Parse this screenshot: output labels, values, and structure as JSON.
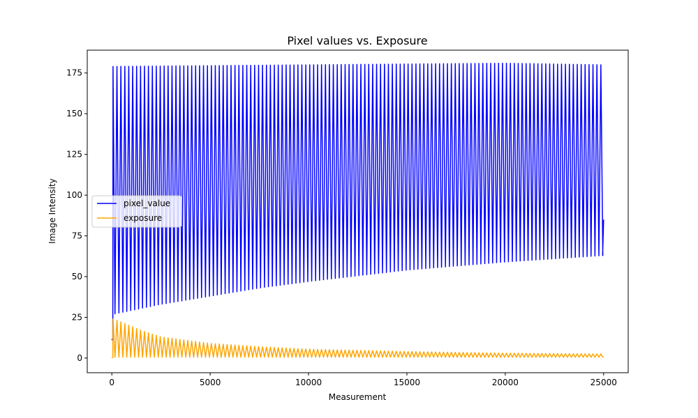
{
  "chart_data": {
    "type": "line",
    "title": "Pixel values vs. Exposure",
    "xlabel": "Measurement",
    "ylabel": "Image Intensity",
    "xlim": [
      -1250,
      26250
    ],
    "ylim": [
      -9,
      189
    ],
    "xticks": [
      0,
      5000,
      10000,
      15000,
      20000,
      25000
    ],
    "yticks": [
      0,
      25,
      50,
      75,
      100,
      125,
      150,
      175
    ],
    "grid": false,
    "legend": "center-left",
    "oscillation": {
      "cycles": 125,
      "x_start": 0,
      "x_end": 25000
    },
    "series": [
      {
        "name": "pixel_value",
        "color": "#0000ff",
        "peak_envelope": {
          "x": [
            100,
            5000,
            10000,
            15000,
            20000,
            25000
          ],
          "y": [
            179,
            179.5,
            180,
            180.5,
            181,
            180
          ]
        },
        "trough_envelope": {
          "x": [
            100,
            2500,
            5000,
            7500,
            10000,
            15000,
            20000,
            25000
          ],
          "y": [
            27,
            33,
            38,
            43,
            47,
            54,
            59,
            63
          ]
        },
        "start": [
          [
            0,
            11
          ],
          [
            50,
            12
          ]
        ],
        "end": [
          [
            24950,
            63
          ],
          [
            25000,
            85
          ]
        ]
      },
      {
        "name": "exposure",
        "color": "#ffa500",
        "peak_envelope": {
          "x": [
            100,
            500,
            1500,
            2500,
            5000,
            7500,
            10000,
            15000,
            20000,
            25000
          ],
          "y": [
            24,
            22,
            17,
            13,
            9,
            7,
            5.5,
            4,
            3,
            2.5
          ]
        },
        "trough_envelope": {
          "x": [
            0,
            25000
          ],
          "y": [
            0.5,
            0.5
          ]
        },
        "start": [
          [
            0,
            0
          ],
          [
            50,
            0.5
          ]
        ],
        "end": [
          [
            25000,
            0.5
          ]
        ]
      }
    ]
  }
}
